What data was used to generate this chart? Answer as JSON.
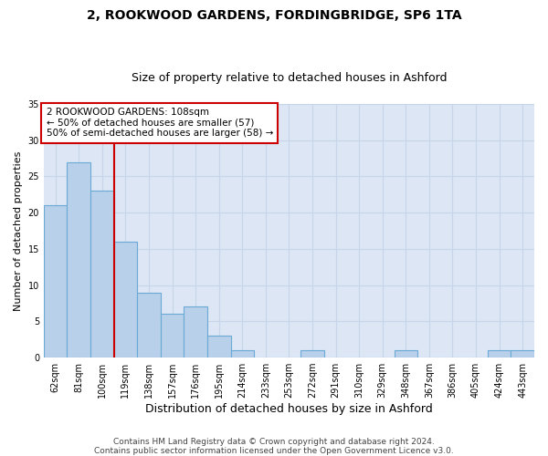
{
  "title1": "2, ROOKWOOD GARDENS, FORDINGBRIDGE, SP6 1TA",
  "title2": "Size of property relative to detached houses in Ashford",
  "xlabel": "Distribution of detached houses by size in Ashford",
  "ylabel": "Number of detached properties",
  "categories": [
    "62sqm",
    "81sqm",
    "100sqm",
    "119sqm",
    "138sqm",
    "157sqm",
    "176sqm",
    "195sqm",
    "214sqm",
    "233sqm",
    "253sqm",
    "272sqm",
    "291sqm",
    "310sqm",
    "329sqm",
    "348sqm",
    "367sqm",
    "386sqm",
    "405sqm",
    "424sqm",
    "443sqm"
  ],
  "values": [
    21,
    27,
    23,
    16,
    9,
    6,
    7,
    3,
    1,
    0,
    0,
    1,
    0,
    0,
    0,
    1,
    0,
    0,
    0,
    1,
    1
  ],
  "bar_color": "#b8d0ea",
  "bar_edge_color": "#6aaad4",
  "grid_color": "#c8d4e8",
  "background_color": "#dce6f5",
  "red_line_x": 2.5,
  "annotation_box_text": "2 ROOKWOOD GARDENS: 108sqm\n← 50% of detached houses are smaller (57)\n50% of semi-detached houses are larger (58) →",
  "annotation_box_color": "#ffffff",
  "annotation_box_edgecolor": "#cc0000",
  "footer1": "Contains HM Land Registry data © Crown copyright and database right 2024.",
  "footer2": "Contains public sector information licensed under the Open Government Licence v3.0.",
  "ylim": [
    0,
    35
  ],
  "yticks": [
    0,
    5,
    10,
    15,
    20,
    25,
    30,
    35
  ],
  "title1_fontsize": 10,
  "title2_fontsize": 9,
  "xlabel_fontsize": 9,
  "ylabel_fontsize": 8,
  "tick_fontsize": 7,
  "annot_fontsize": 7.5,
  "footer_fontsize": 6.5
}
